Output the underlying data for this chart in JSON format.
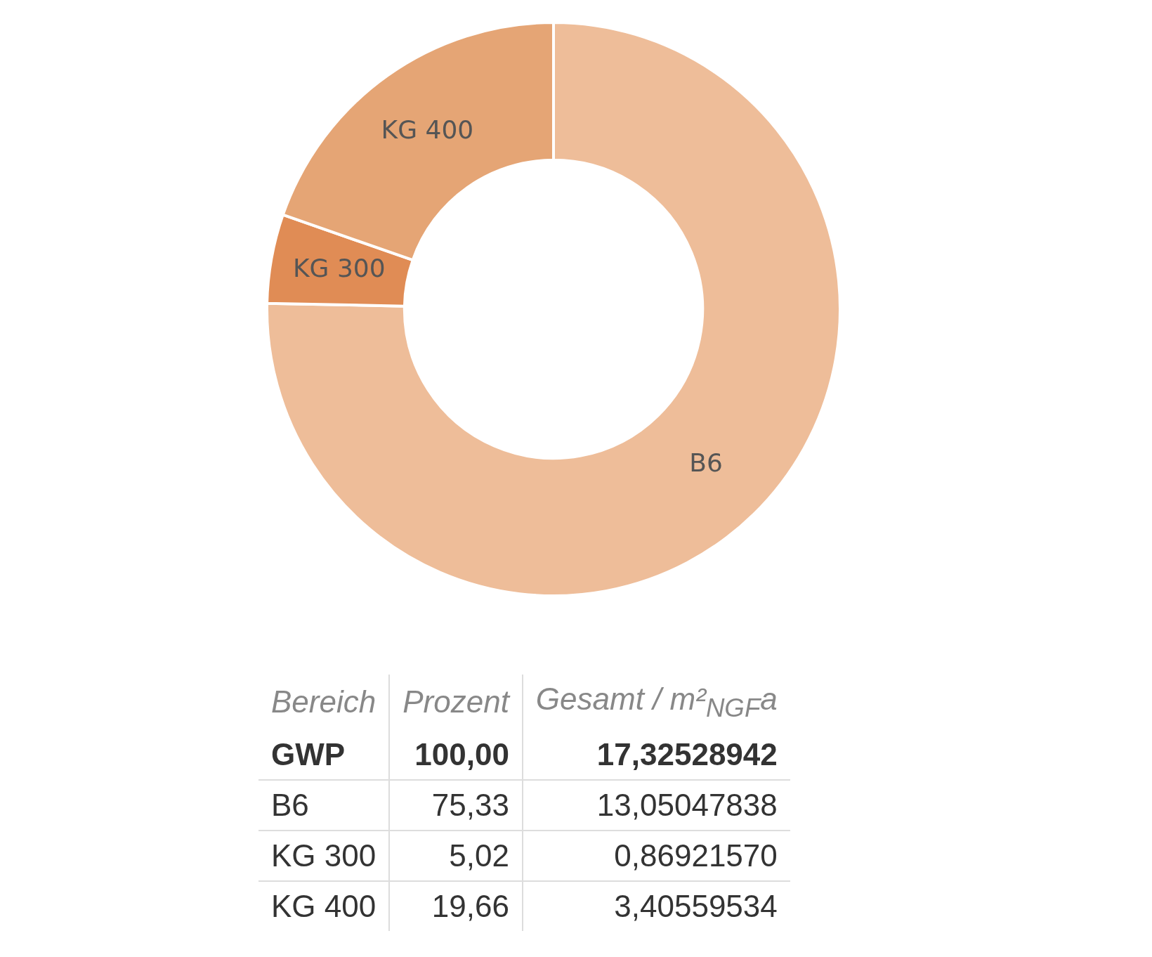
{
  "chart_data": {
    "type": "donut",
    "categories": [
      "B6",
      "KG 300",
      "KG 400"
    ],
    "values": [
      75.33,
      5.02,
      19.66
    ],
    "colors": [
      "#eebd99",
      "#e08c55",
      "#e5a575"
    ],
    "annotations": [
      "Bereich",
      "Prozent",
      "Gesamt / m²$_{NGF}$a",
      "GWP",
      "100,00",
      "17,32528942",
      "75,33",
      "5,02",
      "19,66",
      "13,05047838",
      "0,86921570",
      "3,40559534"
    ]
  }
}
